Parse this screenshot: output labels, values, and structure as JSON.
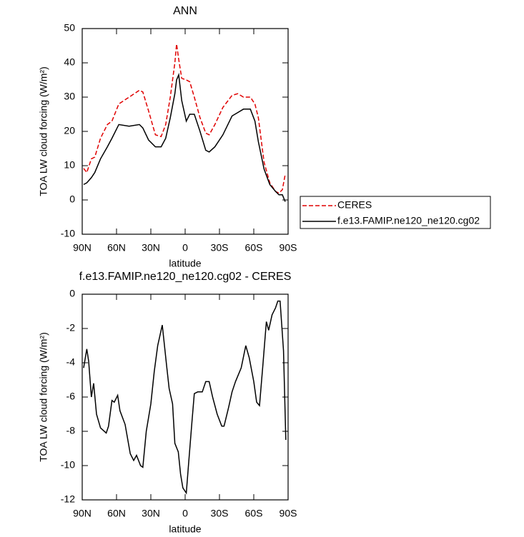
{
  "chart_data": [
    {
      "type": "line",
      "title": "ANN",
      "xlabel": "latitude",
      "ylabel": "TOA LW cloud forcing (W/m²)",
      "x": [
        88.75,
        86,
        82,
        79,
        74,
        68,
        64,
        58,
        49,
        40,
        37,
        32,
        26,
        21,
        17,
        13,
        9,
        7.5,
        5.6,
        3,
        -1,
        -4,
        -8,
        -13,
        -18,
        -21,
        -26,
        -33,
        -41,
        -46,
        -51,
        -57,
        -61,
        -64,
        -69,
        -74,
        -79,
        -82,
        -85,
        -87.5
      ],
      "series": [
        {
          "name": "CERES",
          "color": "#e00000",
          "dash": "dashed",
          "values": [
            9.2,
            8,
            12,
            12.5,
            18,
            22,
            23,
            28,
            30,
            32,
            31.5,
            26,
            19,
            18.5,
            22,
            30,
            40,
            45.5,
            41,
            35.5,
            35,
            34.5,
            30,
            24,
            19.5,
            19,
            22,
            27,
            30.5,
            31,
            30,
            30,
            28,
            24,
            11,
            5,
            2.5,
            2,
            3,
            7.5
          ]
        },
        {
          "name": "f.e13.FAMIP.ne120_ne120.cg02",
          "color": "#000000",
          "dash": "solid",
          "values": [
            4.5,
            5,
            6.5,
            8,
            12,
            15.5,
            18,
            22,
            21.5,
            22,
            21,
            17.5,
            15.5,
            15.5,
            18,
            24,
            31,
            35,
            36.5,
            29,
            23,
            25,
            25,
            20,
            14.5,
            14,
            15.5,
            19,
            24.5,
            25.5,
            26.5,
            26.5,
            23,
            17,
            9,
            4.5,
            2.5,
            1.5,
            1.5,
            -0.5
          ]
        }
      ],
      "xlim": [
        90,
        -90
      ],
      "xticks": [
        {
          "value": 90,
          "label": "90N"
        },
        {
          "value": 60,
          "label": "60N"
        },
        {
          "value": 30,
          "label": "30N"
        },
        0,
        {
          "value": -30,
          "label": "30S"
        },
        {
          "value": -60,
          "label": "60S"
        },
        {
          "value": -90,
          "label": "90S"
        }
      ],
      "ylim": [
        -10,
        50
      ],
      "yticks": [
        -10,
        0,
        10,
        20,
        30,
        40,
        50
      ],
      "legend": "outside right"
    },
    {
      "type": "line",
      "title": "f.e13.FAMIP.ne120_ne120.cg02 - CERES",
      "xlabel": "latitude",
      "ylabel": "TOA LW cloud forcing (W/m²)",
      "x": [
        88.75,
        86,
        84.4,
        82,
        80,
        77.5,
        74,
        69,
        67,
        64,
        62,
        59,
        57,
        52.5,
        48,
        45,
        42.5,
        39,
        37,
        34,
        30,
        27,
        24,
        20,
        16,
        14,
        11,
        9,
        6,
        4,
        2,
        -1,
        -3,
        -6,
        -8,
        -11,
        -15,
        -18,
        -21,
        -24,
        -28,
        -32,
        -34,
        -38,
        -41,
        -44,
        -49,
        -53,
        -56,
        -60,
        -62.5,
        -65,
        -68,
        -71,
        -73,
        -76,
        -79,
        -81,
        -83,
        -86,
        -88
      ],
      "series": [
        {
          "name": "f.e13.FAMIP.ne120_ne120.cg02 - CERES",
          "color": "#000000",
          "dash": "solid",
          "values": [
            -4.3,
            -3.2,
            -3.9,
            -6,
            -5.2,
            -7,
            -7.8,
            -8.1,
            -7.7,
            -6.2,
            -6.3,
            -5.9,
            -6.8,
            -7.6,
            -9.3,
            -9.7,
            -9.4,
            -10,
            -10.1,
            -8,
            -6.4,
            -4.5,
            -3,
            -1.8,
            -4.3,
            -5.5,
            -6.4,
            -8.7,
            -9.2,
            -10.5,
            -11.3,
            -11.6,
            -9.9,
            -7.4,
            -5.8,
            -5.7,
            -5.7,
            -5.1,
            -5.1,
            -6,
            -7,
            -7.7,
            -7.7,
            -6.6,
            -5.7,
            -5.1,
            -4.3,
            -3,
            -3.7,
            -5.1,
            -6.3,
            -6.5,
            -4.1,
            -1.6,
            -2.1,
            -1.2,
            -0.8,
            -0.4,
            -0.4,
            -3.3,
            -8.5
          ]
        }
      ],
      "xlim": [
        90,
        -90
      ],
      "xticks": [
        {
          "value": 90,
          "label": "90N"
        },
        {
          "value": 60,
          "label": "60N"
        },
        {
          "value": 30,
          "label": "30N"
        },
        0,
        {
          "value": -30,
          "label": "30S"
        },
        {
          "value": -60,
          "label": "60S"
        },
        {
          "value": -90,
          "label": "90S"
        }
      ],
      "ylim": [
        -12,
        0
      ],
      "yticks": [
        -12,
        -10,
        -8,
        -6,
        -4,
        -2,
        0
      ]
    }
  ]
}
